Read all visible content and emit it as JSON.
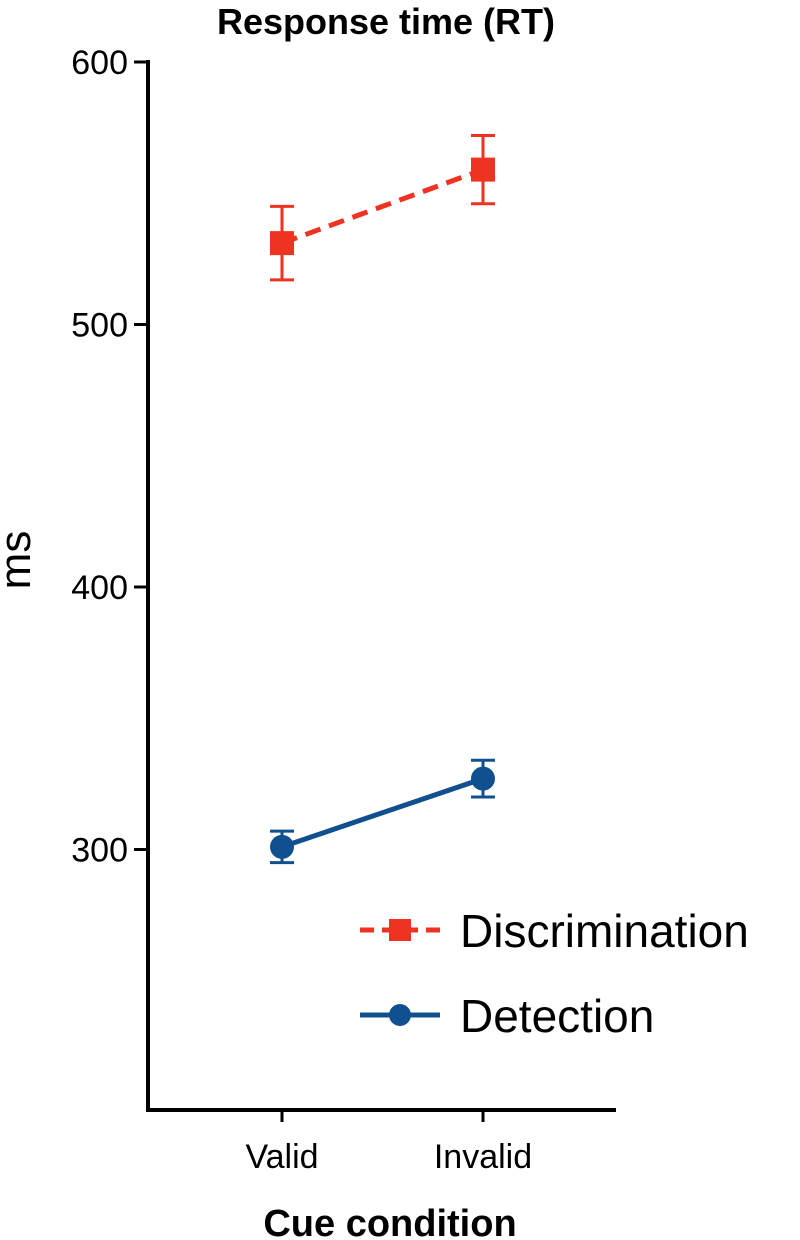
{
  "chart_data": {
    "type": "line",
    "title": "Response time (RT)",
    "xlabel": "Cue condition",
    "ylabel": "ms",
    "categories": [
      "Valid",
      "Invalid"
    ],
    "ylim": [
      200,
      600
    ],
    "yticks": [
      300,
      400,
      500,
      600
    ],
    "legend_position": "bottom-right",
    "series": [
      {
        "name": "Discrimination",
        "color": "#ee3322",
        "marker": "square",
        "linestyle": "dashed",
        "values": [
          531,
          559
        ],
        "error": [
          14,
          13
        ]
      },
      {
        "name": "Detection",
        "color": "#10508e",
        "marker": "circle",
        "linestyle": "solid",
        "values": [
          301,
          327
        ],
        "error": [
          6,
          7
        ]
      }
    ]
  }
}
